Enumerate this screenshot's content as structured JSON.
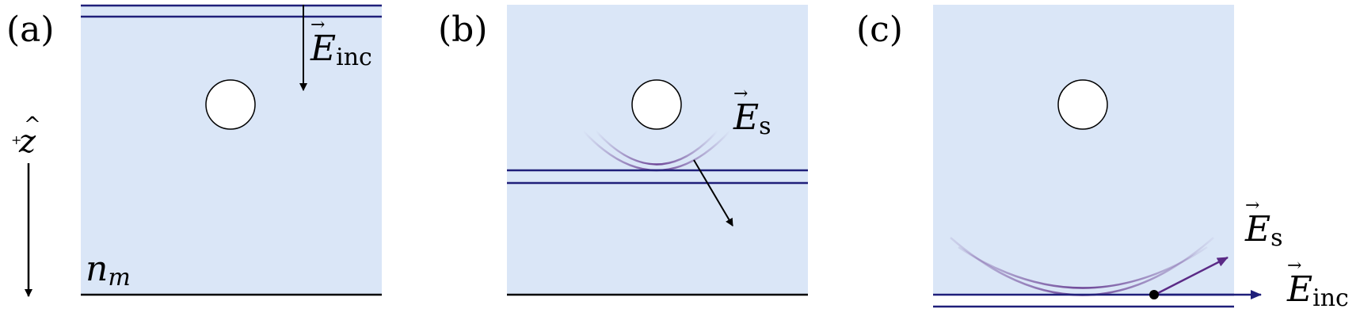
{
  "panels": [
    {
      "label": "(a)"
    },
    {
      "label": "(b)"
    },
    {
      "label": "(c)"
    }
  ],
  "labels": {
    "e_inc_main": "E",
    "e_inc_sub": "inc",
    "e_s_main": "E",
    "e_s_sub": "s",
    "n_main": "n",
    "n_sub": "m",
    "z_symbol": "z",
    "z_hat": "^",
    "z_plus": "+",
    "vector_arrow": "→"
  },
  "colors": {
    "medium": "#dae6f7",
    "wavefront": "#1f1f7a",
    "scattered_wave": "#5b2a86",
    "boundary": "#000000",
    "sphere_fill": "#ffffff",
    "sphere_stroke": "#000000"
  }
}
